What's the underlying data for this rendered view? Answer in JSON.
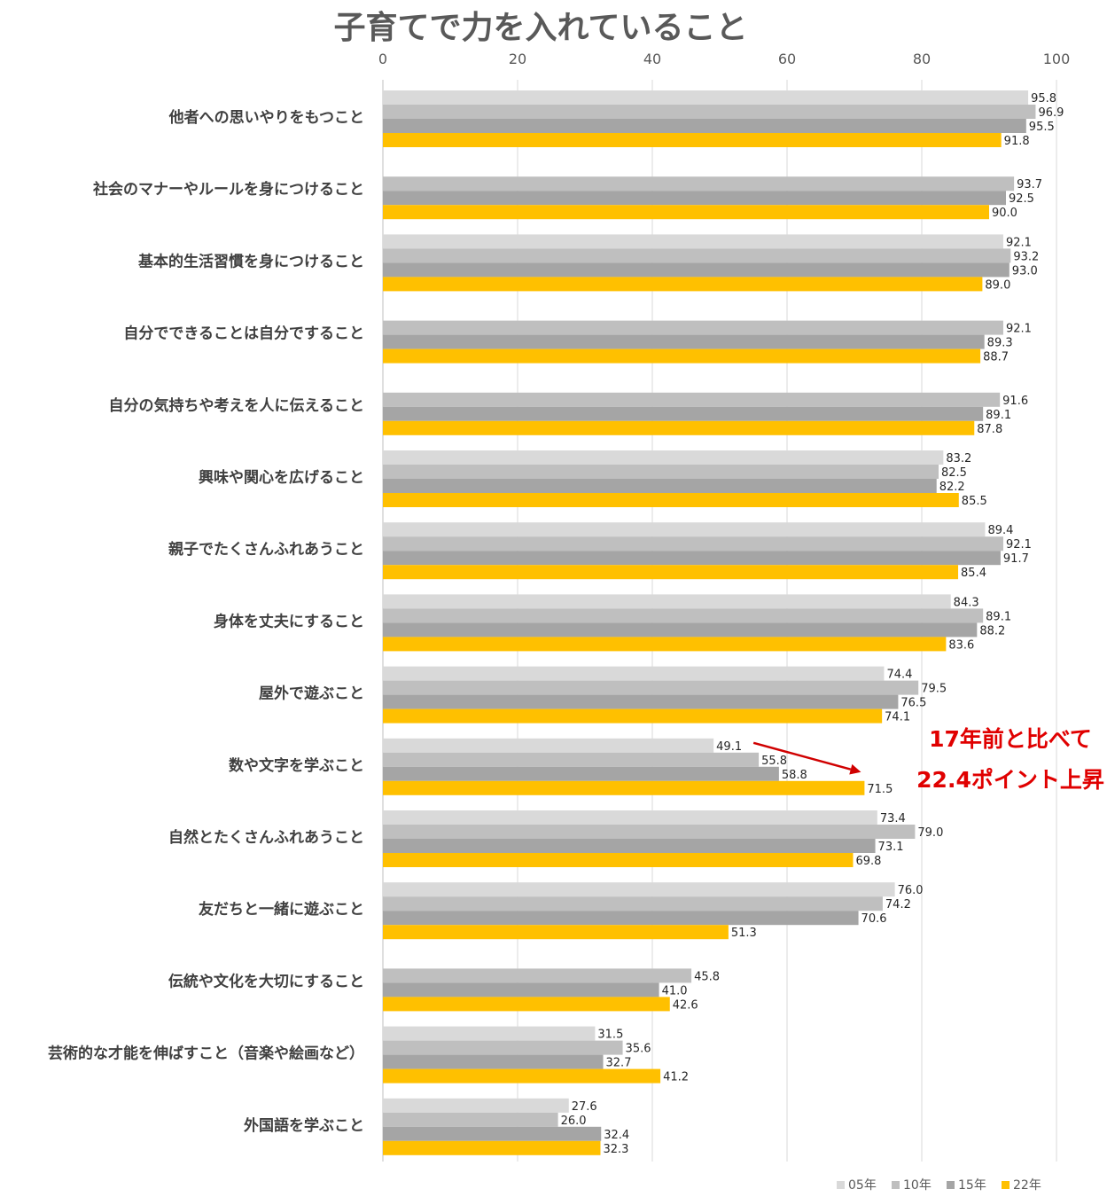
{
  "chart_data": {
    "type": "bar",
    "orientation": "horizontal",
    "title": "子育てで力を入れていること",
    "xlim": [
      0,
      100
    ],
    "xticks": [
      0,
      20,
      40,
      60,
      80,
      100
    ],
    "grid": "vertical",
    "legend_position": "bottom-right",
    "categories": [
      "他者への思いやりをもつこと",
      "社会のマナーやルールを身につけること",
      "基本的生活習慣を身につけること",
      "自分でできることは自分ですること",
      "自分の気持ちや考えを人に伝えること",
      "興味や関心を広げること",
      "親子でたくさんふれあうこと",
      "身体を丈夫にすること",
      "屋外で遊ぶこと",
      "数や文字を学ぶこと",
      "自然とたくさんふれあうこと",
      "友だちと一緒に遊ぶこと",
      "伝統や文化を大切にすること",
      "芸術的な才能を伸ばすこと（音楽や絵画など）",
      "外国語を学ぶこと"
    ],
    "series": [
      {
        "name": "05年",
        "color": "#d9d9d9",
        "values": [
          95.8,
          null,
          92.1,
          null,
          null,
          83.2,
          89.4,
          84.3,
          74.4,
          49.1,
          73.4,
          76.0,
          null,
          31.5,
          27.6
        ]
      },
      {
        "name": "10年",
        "color": "#bfbfbf",
        "values": [
          96.9,
          93.7,
          93.2,
          92.1,
          91.6,
          82.5,
          92.1,
          89.1,
          79.5,
          55.8,
          79.0,
          74.2,
          45.8,
          35.6,
          26.0
        ]
      },
      {
        "name": "15年",
        "color": "#a5a5a5",
        "values": [
          95.5,
          92.5,
          93.0,
          89.3,
          89.1,
          82.2,
          91.7,
          88.2,
          76.5,
          58.8,
          73.1,
          70.6,
          41.0,
          32.7,
          32.4
        ]
      },
      {
        "name": "22年",
        "color": "#ffc000",
        "values": [
          91.8,
          90.0,
          89.0,
          88.7,
          87.8,
          85.5,
          85.4,
          83.6,
          74.1,
          71.5,
          69.8,
          51.3,
          42.6,
          41.2,
          32.3
        ]
      }
    ],
    "annotation": {
      "lines": [
        "17年前と比べて",
        "22.4ポイント上昇"
      ],
      "color": "#e00000",
      "arrow_from": {
        "category_index": 9,
        "series": "05年"
      },
      "arrow_to": {
        "category_index": 9,
        "series": "22年"
      }
    }
  }
}
